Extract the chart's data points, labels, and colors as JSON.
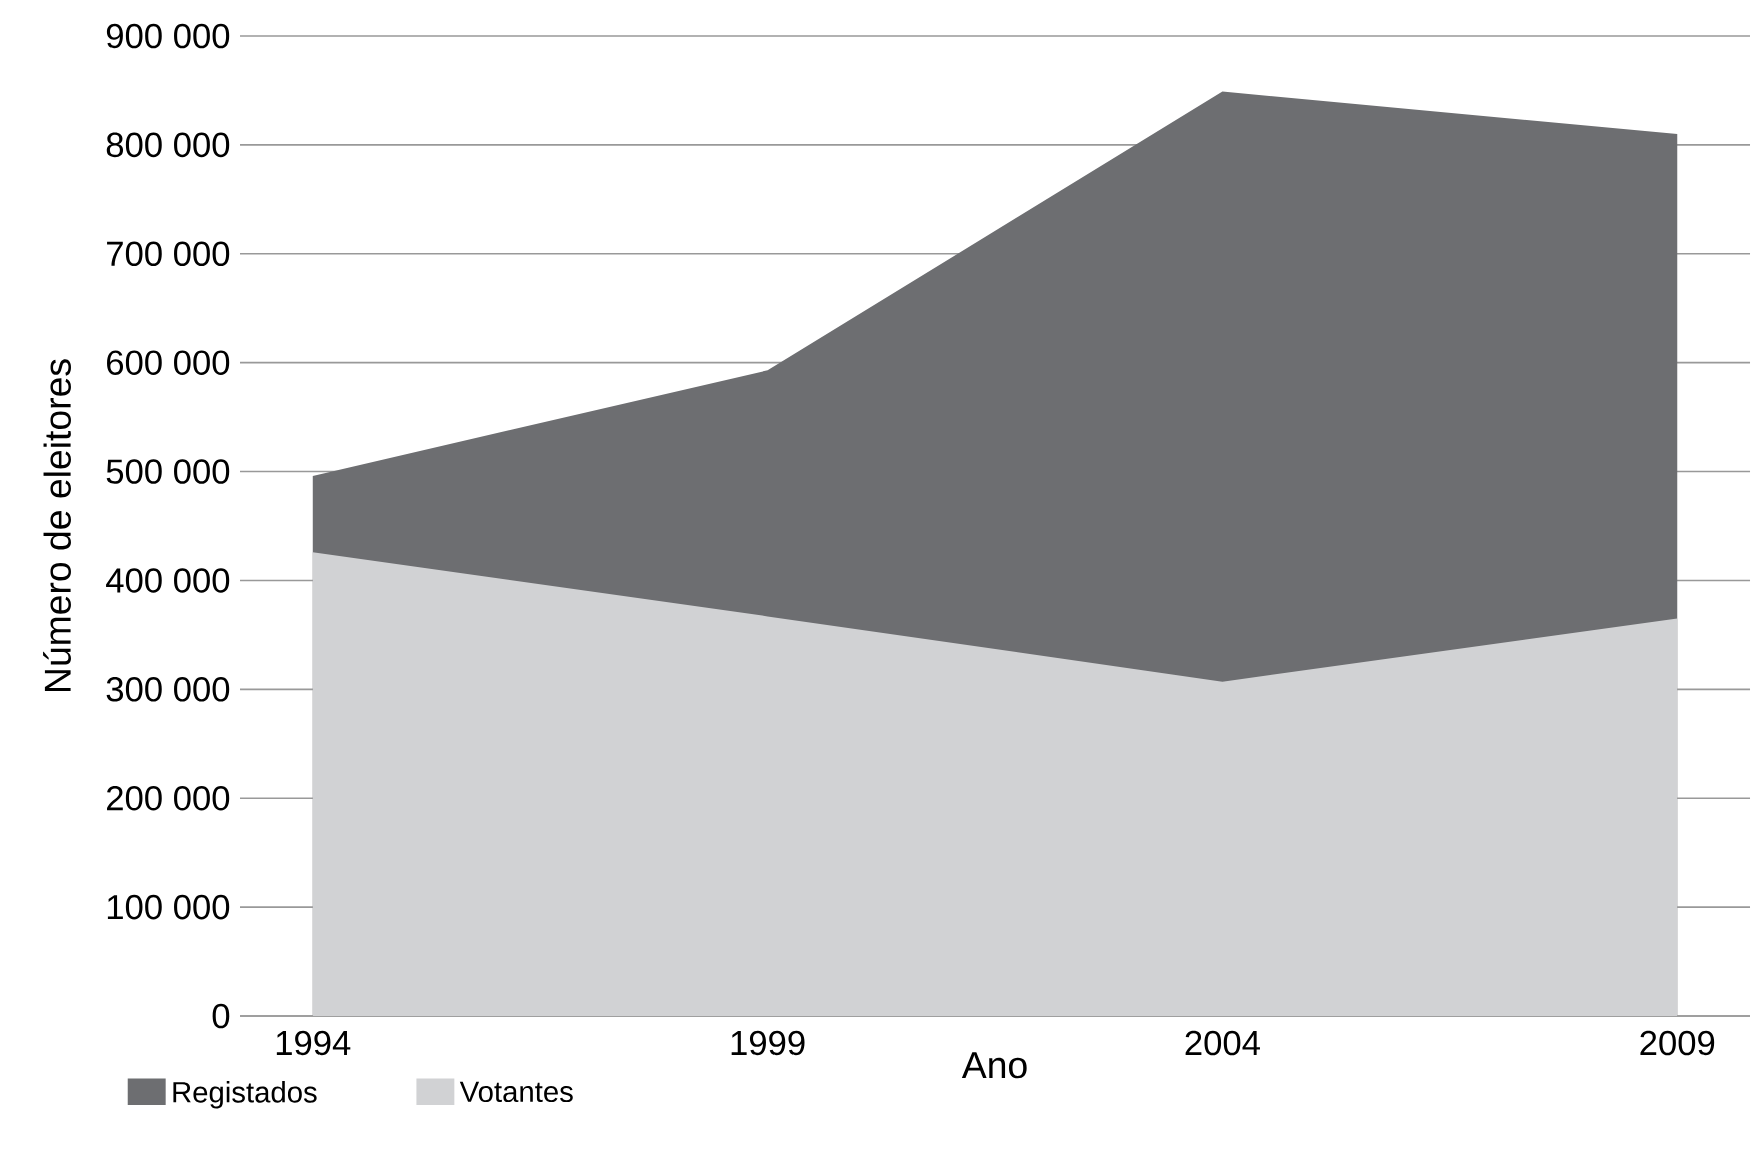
{
  "chart_data": {
    "type": "area",
    "xlabel": "Ano",
    "ylabel": "Número de eleitores",
    "x": [
      1994,
      1999,
      2004,
      2009
    ],
    "series": [
      {
        "name": "Registados",
        "color": "#6d6e71",
        "values": [
          496000,
          593000,
          849000,
          810000
        ]
      },
      {
        "name": "Votantes",
        "color": "#d1d2d4",
        "values": [
          426000,
          367000,
          307000,
          365000
        ]
      }
    ],
    "xlim": [
      1993.2,
      2009.8
    ],
    "xticks": [
      1994,
      1999,
      2004,
      2009
    ],
    "ylim": [
      0,
      900000
    ],
    "yticks": [
      {
        "value": 0,
        "label": "0"
      },
      {
        "value": 100000,
        "label": "100 000"
      },
      {
        "value": 200000,
        "label": "200 000"
      },
      {
        "value": 300000,
        "label": "300 000"
      },
      {
        "value": 400000,
        "label": "400 000"
      },
      {
        "value": 500000,
        "label": "500 000"
      },
      {
        "value": 600000,
        "label": "600 000"
      },
      {
        "value": 700000,
        "label": "700 000"
      },
      {
        "value": 800000,
        "label": "800 000"
      },
      {
        "value": 900000,
        "label": "900 000"
      }
    ],
    "grid": "y",
    "legend": "bottom left"
  }
}
